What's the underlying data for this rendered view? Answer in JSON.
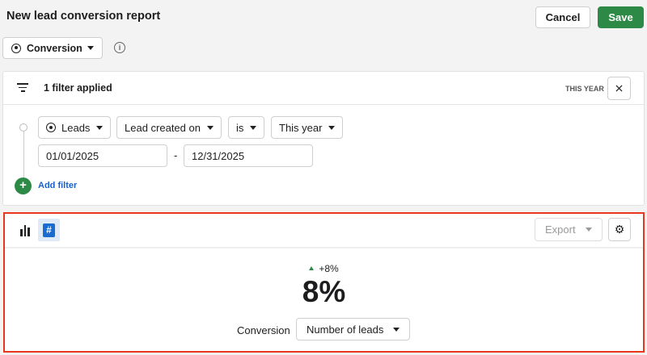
{
  "header": {
    "title": "New lead conversion report",
    "cancel_label": "Cancel",
    "save_label": "Save"
  },
  "report_type": {
    "selected": "Conversion",
    "icon": "target-icon"
  },
  "filters": {
    "summary": "1 filter applied",
    "period_badge": "THIS YEAR",
    "row": {
      "entity": "Leads",
      "field": "Lead created on",
      "operator": "is",
      "value": "This year"
    },
    "date_from": "01/01/2025",
    "date_separator": "-",
    "date_to": "12/31/2025",
    "add_filter_label": "Add filter"
  },
  "report": {
    "export_label": "Export",
    "change": "+8%",
    "value": "8%",
    "conversion_label": "Conversion",
    "conversion_select": "Number of leads"
  },
  "colors": {
    "primary": "#2d8a46",
    "link": "#1a5fc7",
    "highlight": "#e8361f",
    "trend_up": "#2d8a46"
  }
}
